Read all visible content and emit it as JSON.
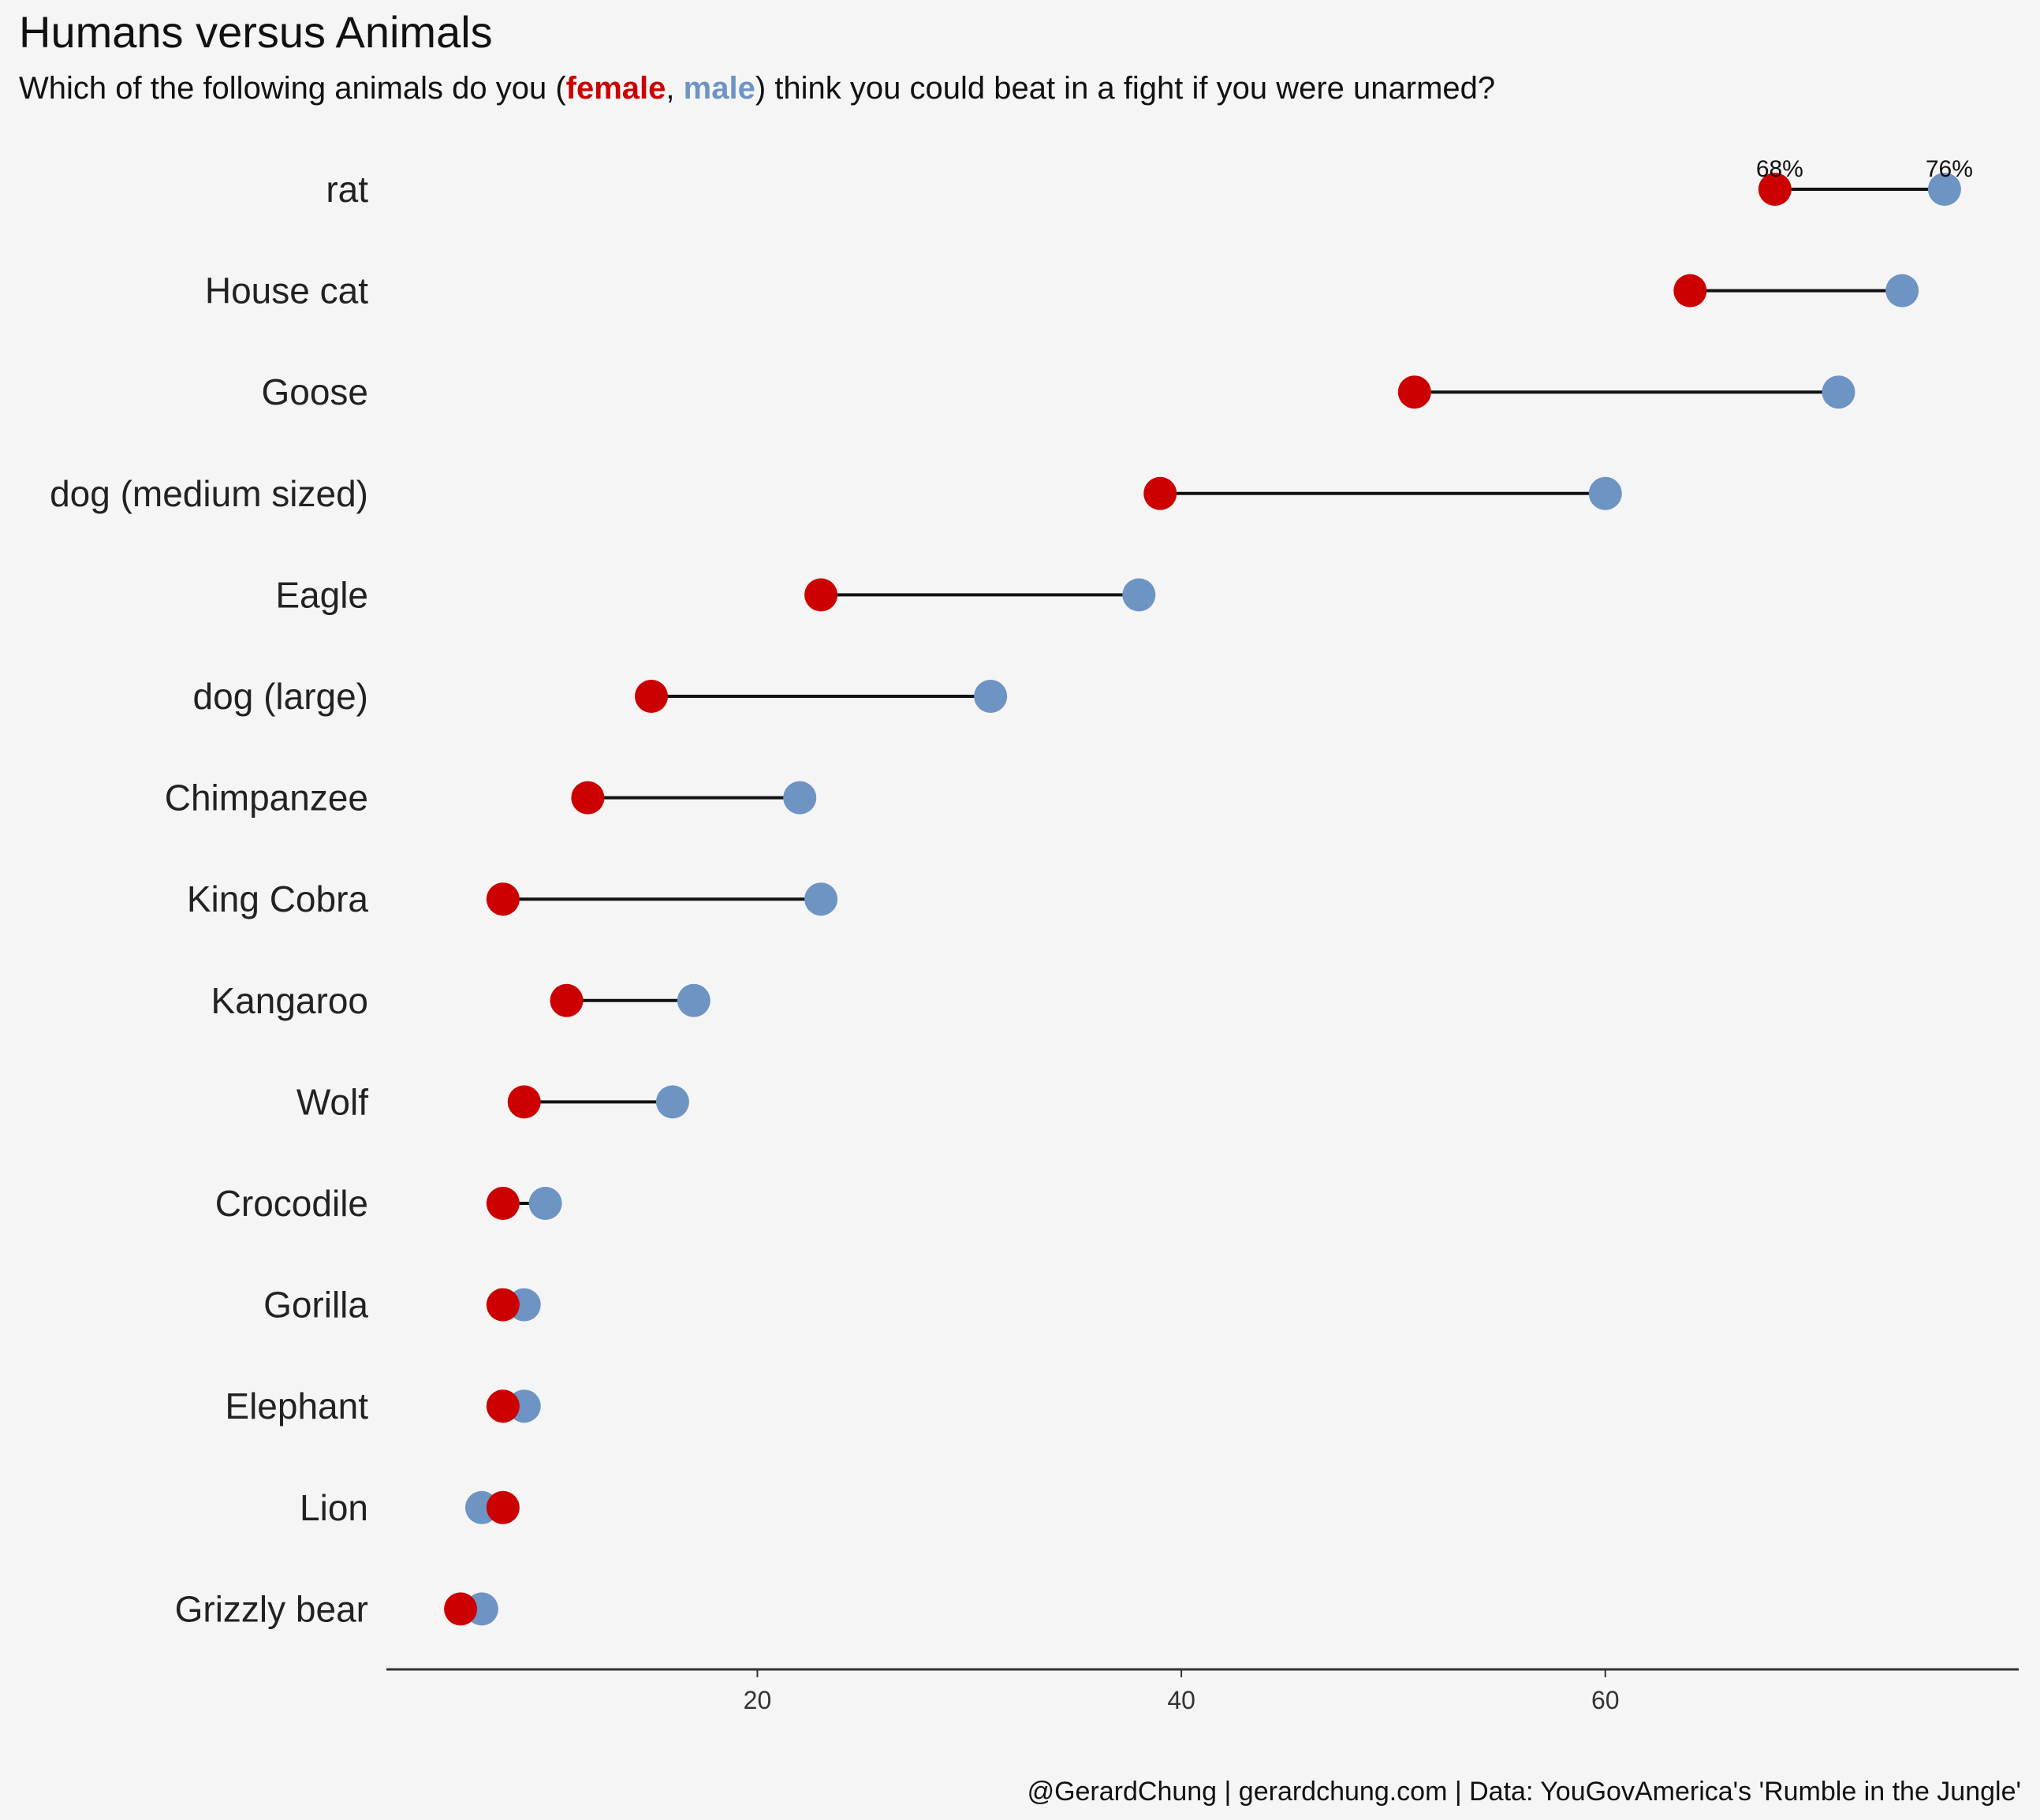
{
  "title": "Humans versus Animals",
  "subtitle": {
    "before": "Which of the following animals do you (",
    "female_label": "female",
    "separator": ", ",
    "male_label": "male",
    "after": ") think you could beat in a fight if you were unarmed?"
  },
  "caption": "@GerardChung | gerardchung.com | Data: YouGovAmerica's 'Rumble in the Jungle'",
  "colors": {
    "female": "#cc0000",
    "male": "#6e94c4",
    "connector": "#111111",
    "axis": "#333333",
    "background": "#f5f5f5"
  },
  "chart_data": {
    "type": "dumbbell",
    "categories": [
      "rat",
      "House cat",
      "Goose",
      "dog (medium sized)",
      "Eagle",
      "dog (large)",
      "Chimpanzee",
      "King Cobra",
      "Kangaroo",
      "Wolf",
      "Crocodile",
      "Gorilla",
      "Elephant",
      "Lion",
      "Grizzly bear"
    ],
    "series": [
      {
        "name": "female",
        "values": [
          68,
          64,
          51,
          39,
          23,
          15,
          12,
          8,
          11,
          9,
          8,
          8,
          8,
          8,
          6
        ]
      },
      {
        "name": "male",
        "values": [
          76,
          74,
          71,
          60,
          38,
          31,
          22,
          23,
          17,
          16,
          10,
          9,
          9,
          7,
          7
        ]
      }
    ],
    "annotations": [
      {
        "category": "rat",
        "series": "female",
        "text": "68%"
      },
      {
        "category": "rat",
        "series": "male",
        "text": "76%"
      }
    ],
    "x_ticks": [
      20,
      40,
      60
    ],
    "xlim": [
      2.5,
      79.5
    ],
    "grid": false,
    "legend": "subtitle"
  }
}
